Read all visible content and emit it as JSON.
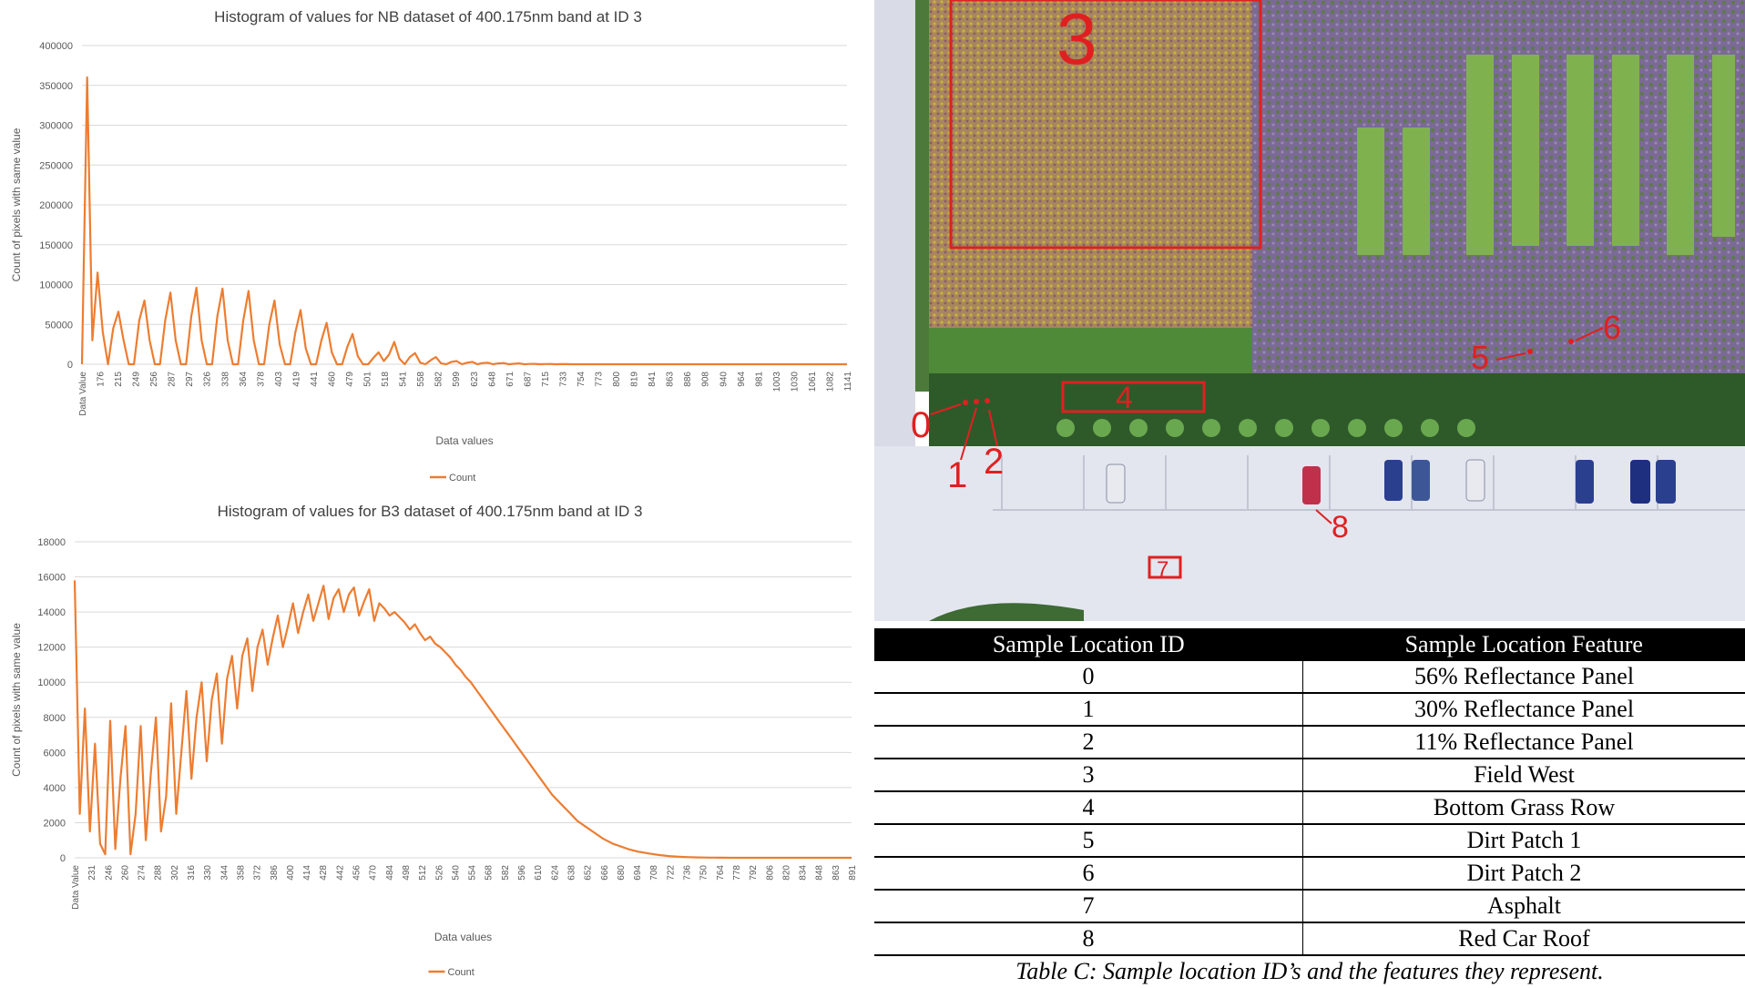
{
  "chart_data": [
    {
      "type": "line",
      "title": "Histogram of values for NB dataset of 400.175nm band at ID 3",
      "xlabel": "Data values",
      "ylabel": "Count of pixels with same value",
      "ylim": [
        0,
        400000
      ],
      "yticks": [
        "0",
        "50000",
        "100000",
        "150000",
        "200000",
        "250000",
        "300000",
        "350000",
        "400000"
      ],
      "x_tick_labels": [
        "Data Value",
        "176",
        "215",
        "249",
        "256",
        "287",
        "297",
        "326",
        "338",
        "364",
        "378",
        "403",
        "419",
        "441",
        "460",
        "479",
        "501",
        "518",
        "541",
        "558",
        "582",
        "599",
        "623",
        "648",
        "671",
        "687",
        "715",
        "733",
        "754",
        "773",
        "800",
        "819",
        "841",
        "863",
        "886",
        "908",
        "940",
        "964",
        "981",
        "1003",
        "1030",
        "1061",
        "1082",
        "1141"
      ],
      "legend": "Count",
      "grid": true,
      "series": [
        {
          "name": "Count",
          "color": "#ed7d31",
          "values": [
            0,
            360000,
            30000,
            115000,
            40000,
            0,
            45000,
            66000,
            30000,
            0,
            0,
            55000,
            80000,
            30000,
            0,
            0,
            55000,
            90000,
            30000,
            0,
            0,
            60000,
            96000,
            30000,
            0,
            0,
            60000,
            95000,
            30000,
            0,
            0,
            55000,
            92000,
            30000,
            0,
            0,
            50000,
            80000,
            25000,
            0,
            0,
            40000,
            68000,
            20000,
            0,
            0,
            30000,
            52000,
            15000,
            0,
            0,
            22000,
            38000,
            10000,
            0,
            0,
            8000,
            15000,
            4000,
            12000,
            28000,
            7000,
            0,
            9000,
            14000,
            2000,
            0,
            5000,
            9000,
            1000,
            0,
            3000,
            4000,
            0,
            2000,
            3000,
            0,
            1500,
            2000,
            0,
            1000,
            1500,
            0,
            600,
            1000,
            0,
            300,
            500,
            0,
            200,
            300,
            0,
            100,
            100,
            0,
            0,
            0,
            0,
            0,
            0,
            0,
            0,
            0,
            0,
            0,
            0,
            0,
            0,
            0,
            0,
            0,
            0,
            0,
            0,
            0,
            0,
            0,
            0,
            0,
            0,
            0,
            0,
            0,
            0,
            0,
            0,
            0,
            0,
            0,
            0,
            0,
            0,
            0,
            0,
            0,
            0,
            0,
            0,
            0,
            0,
            0,
            0,
            0,
            0,
            0,
            0,
            0,
            0
          ]
        }
      ]
    },
    {
      "type": "line",
      "title": "Histogram of values for B3 dataset of 400.175nm band at ID 3",
      "xlabel": "Data values",
      "ylabel": "Count of pixels with same value",
      "ylim": [
        0,
        18000
      ],
      "yticks": [
        "0",
        "2000",
        "4000",
        "6000",
        "8000",
        "10000",
        "12000",
        "14000",
        "16000",
        "18000"
      ],
      "x_tick_labels": [
        "Data Value",
        "231",
        "246",
        "260",
        "274",
        "288",
        "302",
        "316",
        "330",
        "344",
        "358",
        "372",
        "386",
        "400",
        "414",
        "428",
        "442",
        "456",
        "470",
        "484",
        "498",
        "512",
        "526",
        "540",
        "554",
        "568",
        "582",
        "596",
        "610",
        "624",
        "638",
        "652",
        "666",
        "680",
        "694",
        "708",
        "722",
        "736",
        "750",
        "764",
        "778",
        "792",
        "806",
        "820",
        "834",
        "848",
        "863",
        "891"
      ],
      "legend": "Count",
      "grid": true,
      "series": [
        {
          "name": "Count",
          "color": "#ed7d31",
          "values": [
            15800,
            2500,
            8500,
            1500,
            6500,
            800,
            200,
            7800,
            500,
            4500,
            7500,
            200,
            2500,
            7500,
            1000,
            4800,
            8000,
            1500,
            3500,
            8800,
            2500,
            6000,
            9500,
            4500,
            8000,
            10000,
            5500,
            9000,
            10500,
            6500,
            10200,
            11500,
            8500,
            11500,
            12500,
            9500,
            12000,
            13000,
            11000,
            12500,
            13800,
            12000,
            13200,
            14500,
            12800,
            14000,
            15000,
            13500,
            14500,
            15500,
            13600,
            14800,
            15300,
            14000,
            15000,
            15400,
            13800,
            14600,
            15300,
            13500,
            14500,
            14200,
            13800,
            14000,
            13700,
            13400,
            13000,
            13300,
            12800,
            12400,
            12600,
            12200,
            12000,
            11700,
            11400,
            11000,
            10700,
            10300,
            10000,
            9600,
            9200,
            8800,
            8400,
            8000,
            7600,
            7200,
            6800,
            6400,
            6000,
            5600,
            5200,
            4800,
            4400,
            4000,
            3600,
            3300,
            3000,
            2700,
            2400,
            2100,
            1900,
            1700,
            1500,
            1300,
            1100,
            950,
            800,
            700,
            600,
            500,
            420,
            350,
            300,
            250,
            200,
            160,
            130,
            100,
            80,
            60,
            45,
            35,
            25,
            20,
            15,
            10,
            8,
            5,
            3,
            2,
            1,
            0,
            0,
            0,
            0,
            0,
            0,
            0,
            0,
            0,
            0,
            0,
            0,
            0,
            0,
            0,
            0,
            0,
            0,
            0,
            0,
            0,
            0,
            0
          ]
        }
      ]
    }
  ],
  "image_labels": [
    "0",
    "1",
    "2",
    "3",
    "4",
    "5",
    "6",
    "7",
    "8"
  ],
  "table": {
    "headers": [
      "Sample Location ID",
      "Sample Location Feature"
    ],
    "rows": [
      [
        "0",
        "56% Reflectance Panel"
      ],
      [
        "1",
        "30% Reflectance Panel"
      ],
      [
        "2",
        "11% Reflectance Panel"
      ],
      [
        "3",
        "Field West"
      ],
      [
        "4",
        "Bottom Grass Row"
      ],
      [
        "5",
        "Dirt Patch 1"
      ],
      [
        "6",
        "Dirt Patch 2"
      ],
      [
        "7",
        "Asphalt"
      ],
      [
        "8",
        "Red Car Roof"
      ]
    ],
    "caption": "Table C: Sample location ID’s and the features they represent."
  }
}
